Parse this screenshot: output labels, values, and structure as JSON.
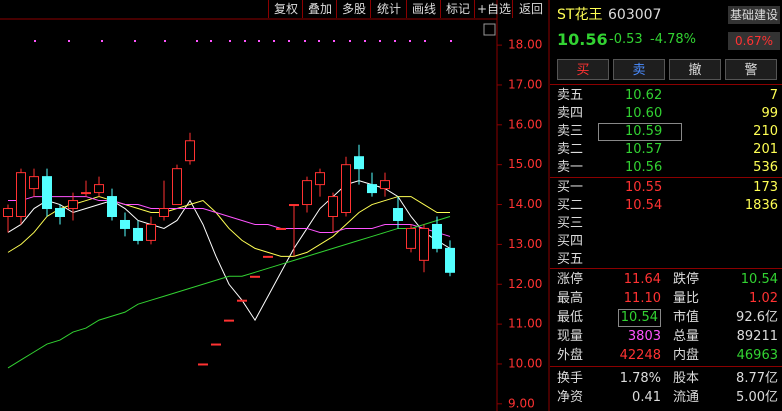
{
  "toolbar": [
    "复权",
    "叠加",
    "多股",
    "统计",
    "画线",
    "标记",
    "+自选",
    "返回"
  ],
  "chart_data": {
    "type": "candlestick",
    "ylim": [
      8.82,
      18.63
    ],
    "yticks": [
      {
        "value": 18,
        "label": "18.00"
      },
      {
        "value": 17,
        "label": "17.00"
      },
      {
        "value": 16,
        "label": "16.00"
      },
      {
        "value": 15,
        "label": "15.00"
      },
      {
        "value": 14,
        "label": "14.00"
      },
      {
        "value": 13,
        "label": "13.00"
      },
      {
        "value": 12,
        "label": "12.00"
      },
      {
        "value": 11,
        "label": "11.00"
      },
      {
        "value": 10,
        "label": "10.00"
      },
      {
        "value": 9,
        "label": "9.00"
      }
    ],
    "up_color": "#ff3232",
    "down_color": "#54ffff",
    "open": [
      13.7,
      13.7,
      14.4,
      14.7,
      13.9,
      13.9,
      14.3,
      14.3,
      14.2,
      13.6,
      13.4,
      13.1,
      13.7,
      14.0,
      15.1,
      10.0,
      10.5,
      11.1,
      11.6,
      12.2,
      12.7,
      13.4,
      14.0,
      14.0,
      14.5,
      13.7,
      13.8,
      15.2,
      14.5,
      14.4,
      13.9,
      12.9,
      12.6,
      13.5,
      12.9
    ],
    "high": [
      14.0,
      14.9,
      14.9,
      14.9,
      14.0,
      14.3,
      14.6,
      14.7,
      14.4,
      13.8,
      13.6,
      13.7,
      14.6,
      15.0,
      15.8,
      10.0,
      10.5,
      11.1,
      11.6,
      12.2,
      12.7,
      13.4,
      14.0,
      14.7,
      14.9,
      14.3,
      15.2,
      15.5,
      14.8,
      14.8,
      14.2,
      13.5,
      13.5,
      13.7,
      13.1
    ],
    "low": [
      13.3,
      13.5,
      14.2,
      13.7,
      13.5,
      13.6,
      14.2,
      14.2,
      13.6,
      13.2,
      13.0,
      13.0,
      13.6,
      14.0,
      15.0,
      10.0,
      10.5,
      11.1,
      11.6,
      12.2,
      12.7,
      13.4,
      12.7,
      13.8,
      14.2,
      13.3,
      13.7,
      14.5,
      14.2,
      14.2,
      13.4,
      12.8,
      12.3,
      12.8,
      12.2
    ],
    "close": [
      13.9,
      14.8,
      14.7,
      13.9,
      13.7,
      14.1,
      14.3,
      14.5,
      13.7,
      13.4,
      13.1,
      13.5,
      13.9,
      14.9,
      15.6,
      10.0,
      10.5,
      11.1,
      11.6,
      12.2,
      12.7,
      13.4,
      14.0,
      14.6,
      14.8,
      14.2,
      15.0,
      14.9,
      14.3,
      14.6,
      13.6,
      13.4,
      13.4,
      12.9,
      12.3
    ],
    "series": [
      {
        "color": "#ffffff",
        "values": [
          13.3,
          13.5,
          13.9,
          14.1,
          14.0,
          13.8,
          13.9,
          14.0,
          14.1,
          13.9,
          13.6,
          13.5,
          13.4,
          13.6,
          14.1,
          13.5,
          12.7,
          12.0,
          11.6,
          11.1,
          11.7,
          12.3,
          12.9,
          13.4,
          13.9,
          14.2,
          14.5,
          14.6,
          14.5,
          14.4,
          14.2,
          13.7,
          13.3,
          13.1,
          12.9
        ]
      },
      {
        "color": "#ffff54",
        "values": [
          12.8,
          13.0,
          13.3,
          13.7,
          13.9,
          14.0,
          14.1,
          14.2,
          14.1,
          14.0,
          13.9,
          13.8,
          13.8,
          13.9,
          14.0,
          14.1,
          13.8,
          13.4,
          13.1,
          12.9,
          12.8,
          12.7,
          12.7,
          12.8,
          13.0,
          13.2,
          13.5,
          13.8,
          14.0,
          14.1,
          14.2,
          14.2,
          14.0,
          13.8,
          13.8
        ]
      },
      {
        "color": "#ff54ff",
        "values": [
          14.1,
          14.1,
          14.2,
          14.2,
          14.2,
          14.2,
          14.2,
          14.1,
          14.1,
          14.0,
          14.0,
          13.9,
          13.9,
          13.9,
          13.9,
          13.9,
          13.8,
          13.7,
          13.6,
          13.5,
          13.5,
          13.4,
          13.4,
          13.4,
          13.3,
          13.3,
          13.4,
          13.4,
          13.4,
          13.5,
          13.5,
          13.5,
          13.4,
          13.3,
          13.2
        ]
      },
      {
        "color": "#32d232",
        "values": [
          9.9,
          10.1,
          10.3,
          10.5,
          10.6,
          10.8,
          10.9,
          11.1,
          11.2,
          11.3,
          11.5,
          11.6,
          11.7,
          11.8,
          11.9,
          12.0,
          12.1,
          12.2,
          12.2,
          12.3,
          12.4,
          12.5,
          12.6,
          12.7,
          12.8,
          12.9,
          13.0,
          13.1,
          13.2,
          13.3,
          13.4,
          13.4,
          13.5,
          13.6,
          13.7
        ]
      }
    ]
  },
  "quote": {
    "name": "ST花王",
    "code": "603007",
    "sector": "基础建设",
    "sector_change": "0.67%",
    "price": "10.56",
    "change": "-0.53",
    "change_pct": "-4.78%"
  },
  "buttons": [
    "买",
    "卖",
    "撤",
    "警"
  ],
  "asks": [
    {
      "label": "卖五",
      "price": "10.62",
      "volume": "7"
    },
    {
      "label": "卖四",
      "price": "10.60",
      "volume": "99"
    },
    {
      "label": "卖三",
      "price": "10.59",
      "volume": "210"
    },
    {
      "label": "卖二",
      "price": "10.57",
      "volume": "201"
    },
    {
      "label": "卖一",
      "price": "10.56",
      "volume": "536"
    }
  ],
  "bids": [
    {
      "label": "买一",
      "price": "10.55",
      "volume": "173"
    },
    {
      "label": "买二",
      "price": "10.54",
      "volume": "1836"
    },
    {
      "label": "买三"
    },
    {
      "label": "买四"
    },
    {
      "label": "买五"
    }
  ],
  "stats": [
    [
      {
        "label": "涨停",
        "value": "11.64",
        "color": "#ff3232"
      },
      {
        "label": "跌停",
        "value": "10.54",
        "color": "#32d232"
      }
    ],
    [
      {
        "label": "最高",
        "value": "11.10",
        "color": "#ff3232"
      },
      {
        "label": "量比",
        "value": "1.02",
        "color": "#ff3232"
      }
    ],
    [
      {
        "label": "最低",
        "value": "10.54",
        "color": "#32d232"
      },
      {
        "label": "市值",
        "value": "92.6亿",
        "color": "#dcdcdc"
      }
    ],
    [
      {
        "label": "现量",
        "value": "3803",
        "color": "#ff54ff"
      },
      {
        "label": "总量",
        "value": "89211",
        "color": "#dcdcdc"
      }
    ],
    [
      {
        "label": "外盘",
        "value": "42248",
        "color": "#ff3232"
      },
      {
        "label": "内盘",
        "value": "46963",
        "color": "#32d232"
      }
    ],
    [
      {
        "label": "换手",
        "value": "1.78%",
        "color": "#dcdcdc"
      },
      {
        "label": "股本",
        "value": "8.77亿",
        "color": "#dcdcdc"
      }
    ],
    [
      {
        "label": "净资",
        "value": "0.41",
        "color": "#dcdcdc"
      },
      {
        "label": "流通",
        "value": "5.00亿",
        "color": "#dcdcdc"
      }
    ]
  ]
}
